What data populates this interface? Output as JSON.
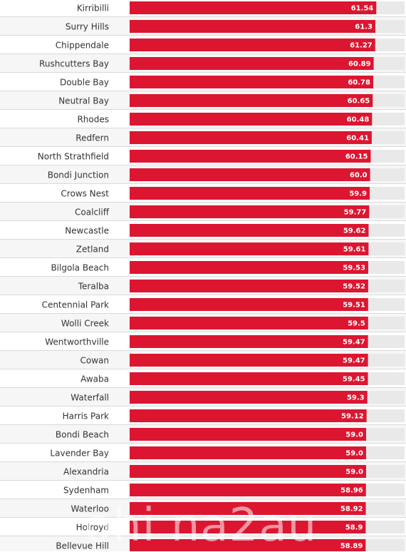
{
  "chart_data": {
    "type": "bar",
    "orientation": "horizontal",
    "categories": [
      "Kirribilli",
      "Surry Hills",
      "Chippendale",
      "Rushcutters Bay",
      "Double Bay",
      "Neutral Bay",
      "Rhodes",
      "Redfern",
      "North Strathfield",
      "Bondi Junction",
      "Crows Nest",
      "Coalcliff",
      "Newcastle",
      "Zetland",
      "Bilgola Beach",
      "Teralba",
      "Centennial Park",
      "Wolli Creek",
      "Wentworthville",
      "Cowan",
      "Awaba",
      "Waterfall",
      "Harris Park",
      "Bondi Beach",
      "Lavender Bay",
      "Alexandria",
      "Sydenham",
      "Waterloo",
      "Holroyd",
      "Bellevue Hill"
    ],
    "values": [
      61.54,
      61.3,
      61.27,
      60.89,
      60.78,
      60.65,
      60.48,
      60.41,
      60.15,
      60.0,
      59.9,
      59.77,
      59.62,
      59.61,
      59.53,
      59.52,
      59.51,
      59.5,
      59.47,
      59.47,
      59.45,
      59.3,
      59.12,
      59.0,
      59.0,
      59.0,
      58.96,
      58.92,
      58.9,
      58.89
    ],
    "value_labels": [
      "61.54",
      "61.3",
      "61.27",
      "60.89",
      "60.78",
      "60.65",
      "60.48",
      "60.41",
      "60.15",
      "60.0",
      "59.9",
      "59.77",
      "59.62",
      "59.61",
      "59.53",
      "59.52",
      "59.51",
      "59.5",
      "59.47",
      "59.47",
      "59.45",
      "59.3",
      "59.12",
      "59.0",
      "59.0",
      "59.0",
      "58.96",
      "58.92",
      "58.9",
      "58.89"
    ],
    "xlim": [
      0,
      68.6
    ],
    "grid": false,
    "bar_color": "#dc1631",
    "track_color": "#e9e9e9"
  },
  "watermark": "ohi na2au"
}
